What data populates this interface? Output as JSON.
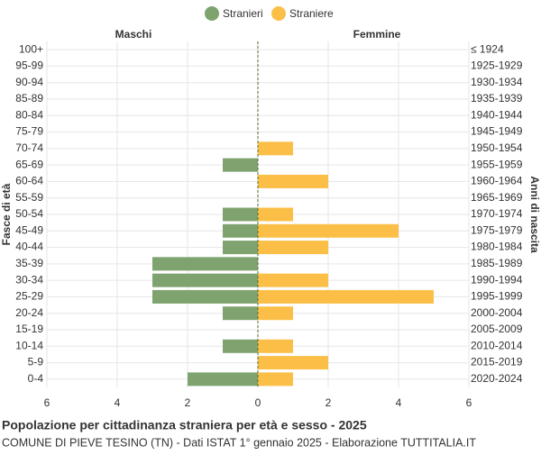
{
  "chart_data": {
    "type": "pyramid",
    "title": "Popolazione per cittadinanza straniera per età e sesso - 2025",
    "subtitle": "COMUNE DI PIEVE TESINO (TN) - Dati ISTAT 1° gennaio 2025 - Elaborazione TUTTITALIA.IT",
    "left_label": "Maschi",
    "right_label": "Femmine",
    "y_axis_label": "Fasce di età",
    "y2_axis_label": "Anni di nascita",
    "categories": [
      "100+",
      "95-99",
      "90-94",
      "85-89",
      "80-84",
      "75-79",
      "70-74",
      "65-69",
      "60-64",
      "55-59",
      "50-54",
      "45-49",
      "40-44",
      "35-39",
      "30-34",
      "25-29",
      "20-24",
      "15-19",
      "10-14",
      "5-9",
      "0-4"
    ],
    "birth_years": [
      "≤ 1924",
      "1925-1929",
      "1930-1934",
      "1935-1939",
      "1940-1944",
      "1945-1949",
      "1950-1954",
      "1955-1959",
      "1960-1964",
      "1965-1969",
      "1970-1974",
      "1975-1979",
      "1980-1984",
      "1985-1989",
      "1990-1994",
      "1995-1999",
      "2000-2004",
      "2005-2009",
      "2010-2014",
      "2015-2019",
      "2020-2024"
    ],
    "series": [
      {
        "name": "Stranieri",
        "color": "#7fa36f",
        "side": "left",
        "values": [
          0,
          0,
          0,
          0,
          0,
          0,
          0,
          1,
          0,
          0,
          1,
          1,
          1,
          3,
          3,
          3,
          1,
          0,
          1,
          0,
          2
        ]
      },
      {
        "name": "Straniere",
        "color": "#fbbf47",
        "side": "right",
        "values": [
          0,
          0,
          0,
          0,
          0,
          0,
          1,
          0,
          2,
          0,
          1,
          4,
          2,
          0,
          2,
          5,
          1,
          0,
          1,
          2,
          1
        ]
      }
    ],
    "xlim": [
      -6,
      6
    ],
    "xticks": [
      {
        "value": -6,
        "label": "6"
      },
      {
        "value": -4,
        "label": "4"
      },
      {
        "value": -2,
        "label": "2"
      },
      0,
      2,
      4,
      6
    ],
    "grid": true
  }
}
